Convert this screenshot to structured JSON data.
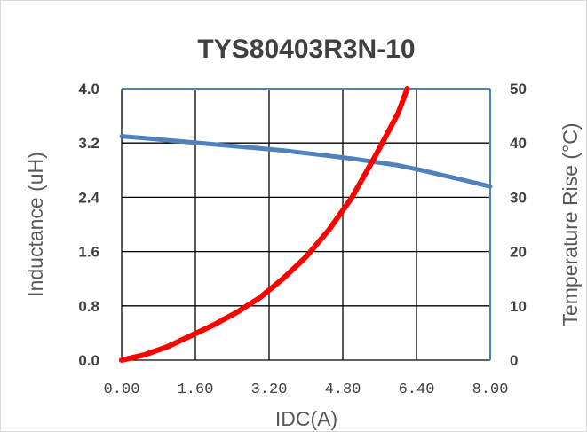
{
  "chart_data": {
    "type": "line",
    "title": "TYS80403R3N-10",
    "xlabel": "IDC(A)",
    "ylabel_left": "Inductance (uH)",
    "ylabel_right": "Temperature Rise (°C)",
    "xlim": [
      0,
      8
    ],
    "ylim_left": [
      0,
      4
    ],
    "ylim_right": [
      0,
      50
    ],
    "x_ticks": [
      "0.00",
      "1.60",
      "3.20",
      "4.80",
      "6.40",
      "8.00"
    ],
    "y_ticks_left": [
      "0.0",
      "0.8",
      "1.6",
      "2.4",
      "3.2",
      "4.0"
    ],
    "y_ticks_right": [
      "0",
      "10",
      "20",
      "30",
      "40",
      "50"
    ],
    "grid": true,
    "series": [
      {
        "axis": "left",
        "color": "#4f81bd",
        "x": [
          0,
          0.5,
          1.0,
          1.5,
          2.0,
          2.5,
          3.0,
          3.5,
          4.0,
          4.5,
          5.0,
          5.5,
          6.0,
          6.5,
          7.0,
          7.5,
          8.0
        ],
        "y": [
          3.3,
          3.27,
          3.24,
          3.21,
          3.18,
          3.15,
          3.12,
          3.09,
          3.05,
          3.01,
          2.97,
          2.92,
          2.87,
          2.8,
          2.72,
          2.64,
          2.56
        ]
      },
      {
        "axis": "right",
        "color": "#ff0000",
        "x": [
          0,
          0.5,
          1.0,
          1.5,
          2.0,
          2.5,
          3.0,
          3.5,
          4.0,
          4.5,
          5.0,
          5.5,
          6.0,
          6.2
        ],
        "y": [
          0,
          1,
          2.5,
          4.5,
          6.5,
          8.8,
          11.5,
          15,
          19,
          24,
          30,
          37.5,
          45.5,
          50
        ]
      }
    ]
  }
}
